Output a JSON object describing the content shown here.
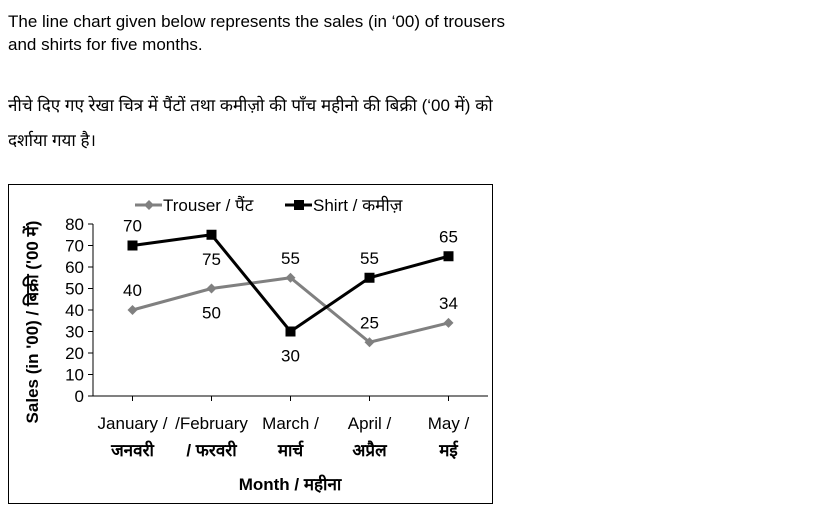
{
  "intro": {
    "english": "The line chart given below represents the sales (in ‘00) of trousers and shirts for five months.",
    "hindi": "नीचे दिए गए रेखा चित्र में पैंटों तथा कमीज़ो की पाँच महीनो की बिक्री (‘00 में) को दर्शाया गया है।"
  },
  "chart_data": {
    "type": "line",
    "xlabel": "Month / महीना",
    "ylabel": "Sales (in '00) / बिक्री ('00 में)",
    "categories": [
      [
        "January /",
        "जनवरी"
      ],
      [
        "/February",
        "/ फरवरी"
      ],
      [
        "March /",
        "मार्च"
      ],
      [
        "April /",
        "अप्रैल"
      ],
      [
        "May /",
        "मई"
      ]
    ],
    "ylim": [
      0,
      80
    ],
    "yticks": [
      0,
      10,
      20,
      30,
      40,
      50,
      60,
      70,
      80
    ],
    "grid": false,
    "legend_position": "top",
    "series": [
      {
        "name": "Trouser / पैंट",
        "values": [
          40,
          50,
          55,
          25,
          34
        ],
        "color": "#808080",
        "marker": "diamond",
        "label_offsets": [
          "above",
          "below",
          "above",
          "above",
          "above"
        ]
      },
      {
        "name": "Shirt / कमीज़",
        "values": [
          70,
          75,
          30,
          55,
          65
        ],
        "color": "#000000",
        "marker": "square",
        "label_offsets": [
          "above",
          "below",
          "below",
          "above",
          "above"
        ]
      }
    ]
  }
}
